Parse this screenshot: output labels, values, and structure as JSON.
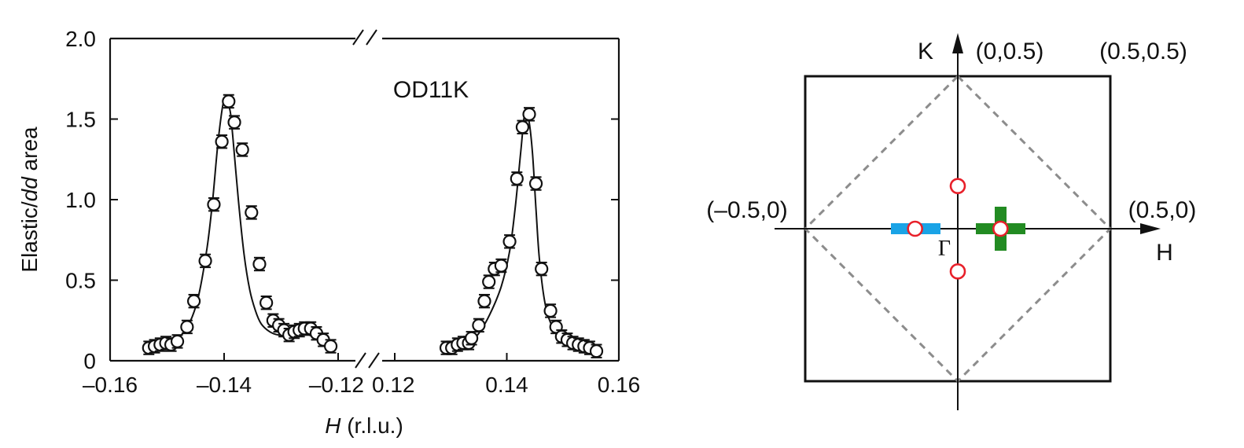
{
  "chart_data": [
    {
      "type": "scatter",
      "annotation": "OD11K",
      "ylabel_parts": [
        "Elastic/",
        "dd",
        " area"
      ],
      "xlabel_parts": [
        "H",
        " (r.l.u.)"
      ],
      "ylim": [
        0,
        2.0
      ],
      "yticks": [
        "0",
        "0.5",
        "1.0",
        "1.5",
        "2.0"
      ],
      "broken_x_axis": true,
      "left_panel": {
        "xlim": [
          -0.16,
          -0.12
        ],
        "xticks": [
          "–0.16",
          "–0.14",
          "–0.12"
        ],
        "x": [
          -0.1532,
          -0.1522,
          -0.1512,
          -0.1502,
          -0.1493,
          -0.1482,
          -0.1465,
          -0.1453,
          -0.1433,
          -0.1418,
          -0.1404,
          -0.1392,
          -0.1382,
          -0.1368,
          -0.1352,
          -0.1338,
          -0.1326,
          -0.1314,
          -0.1304,
          -0.1295,
          -0.1286,
          -0.1277,
          -0.1268,
          -0.1259,
          -0.1248,
          -0.1238,
          -0.1226,
          -0.1213
        ],
        "y": [
          0.08,
          0.09,
          0.1,
          0.11,
          0.1,
          0.12,
          0.21,
          0.37,
          0.62,
          0.97,
          1.36,
          1.61,
          1.48,
          1.31,
          0.92,
          0.6,
          0.36,
          0.25,
          0.22,
          0.19,
          0.16,
          0.18,
          0.19,
          0.2,
          0.2,
          0.17,
          0.13,
          0.09
        ],
        "error": 0.04,
        "fit_x": [
          -0.1535,
          -0.15,
          -0.148,
          -0.146,
          -0.1445,
          -0.143,
          -0.142,
          -0.141,
          -0.14,
          -0.139,
          -0.1385,
          -0.1375,
          -0.1365,
          -0.1355,
          -0.1345,
          -0.1335,
          -0.132,
          -0.1305,
          -0.129,
          -0.1275,
          -0.126,
          -0.1245,
          -0.123,
          -0.1215
        ],
        "fit_y": [
          0.06,
          0.1,
          0.14,
          0.24,
          0.4,
          0.7,
          1.0,
          1.38,
          1.62,
          1.56,
          1.4,
          1.0,
          0.66,
          0.44,
          0.31,
          0.23,
          0.18,
          0.16,
          0.16,
          0.17,
          0.17,
          0.15,
          0.11,
          0.07
        ]
      },
      "right_panel": {
        "xlim": [
          0.12,
          0.16
        ],
        "xticks": [
          "0.12",
          "0.14",
          "0.16"
        ],
        "x": [
          0.1292,
          0.1302,
          0.1312,
          0.1322,
          0.1332,
          0.1337,
          0.135,
          0.136,
          0.1368,
          0.1378,
          0.139,
          0.1405,
          0.1418,
          0.1428,
          0.144,
          0.1452,
          0.1462,
          0.1478,
          0.1488,
          0.1498,
          0.1508,
          0.1518,
          0.1528,
          0.1538,
          0.1548,
          0.156
        ],
        "y": [
          0.08,
          0.08,
          0.1,
          0.11,
          0.11,
          0.14,
          0.22,
          0.37,
          0.49,
          0.57,
          0.59,
          0.74,
          1.13,
          1.45,
          1.53,
          1.1,
          0.57,
          0.31,
          0.21,
          0.15,
          0.13,
          0.11,
          0.1,
          0.09,
          0.08,
          0.06
        ],
        "error": 0.04,
        "fit_x": [
          0.1285,
          0.131,
          0.133,
          0.135,
          0.137,
          0.139,
          0.1405,
          0.1415,
          0.1425,
          0.1433,
          0.144,
          0.1446,
          0.1452,
          0.1458,
          0.1468,
          0.148,
          0.1495,
          0.151,
          0.153,
          0.156
        ],
        "fit_y": [
          0.05,
          0.07,
          0.1,
          0.17,
          0.29,
          0.46,
          0.68,
          0.95,
          1.3,
          1.56,
          1.48,
          1.28,
          0.95,
          0.64,
          0.36,
          0.22,
          0.14,
          0.1,
          0.08,
          0.06
        ]
      }
    },
    {
      "type": "diagram",
      "labels": {
        "k_axis": "K",
        "h_axis": "H",
        "gamma": "Γ",
        "corner_top": "(0,0.5)",
        "corner_top_right": "(0.5,0.5)",
        "left": "(–0.5,0)",
        "right": "(0.5,0)"
      },
      "colors": {
        "circle_stroke": "#e8202a",
        "blue_bar": "#1aa3e6",
        "green_cross": "#228b22",
        "dashed": "#8c8c8c"
      },
      "points": [
        {
          "h": 0,
          "k": 0.14
        },
        {
          "h": 0,
          "k": -0.14
        },
        {
          "h": -0.14,
          "k": 0
        },
        {
          "h": 0.14,
          "k": 0
        }
      ]
    }
  ]
}
